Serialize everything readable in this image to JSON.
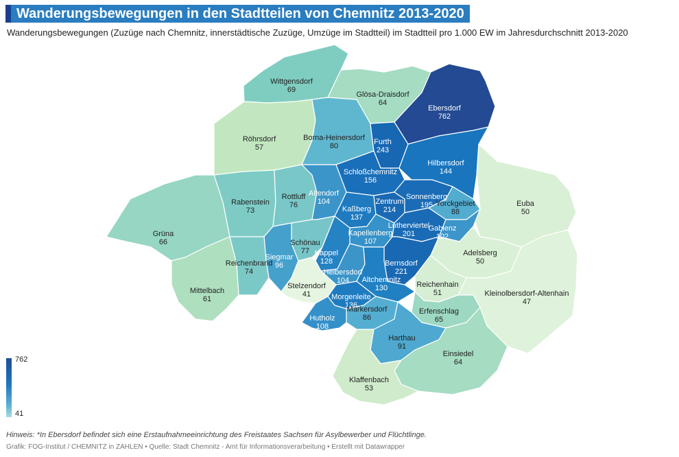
{
  "title": "Wanderungsbewegungen in den Stadtteilen von Chemnitz 2013-2020",
  "subtitle": "Wanderungsbewegungen (Zuzüge nach Chemnitz, innerstädtische Zuzüge, Umzüge im Stadtteil) im Stadtteil pro 1.000 EW im Jahresdurchschnitt 2013-2020",
  "legend": {
    "max": "762",
    "min": "41"
  },
  "note": "Hinweis: *In Ebersdorf befindet sich eine Erstaufnahmeeinrichtung des Freistaates Sachsen für Asylbewerber und Flüchtlinge.",
  "credit": "Grafik: FOG-Institut / CHEMNITZ in ZAHLEN • Quelle: Stadt Chemnitz - Amt für Informationsverarbeitung • Erstellt mit Datawrapper",
  "colors": {
    "title_bg": "#2a7dc0",
    "scale_high": "#1f4e97",
    "scale_mid": "#1f77c0",
    "scale_low": "#a8dde0"
  },
  "districts": [
    {
      "name": "Wittgensdorf",
      "value": "69",
      "color": "#7fcdc0"
    },
    {
      "name": "Glösa-Draisdorf",
      "value": "64",
      "color": "#a5dcc2"
    },
    {
      "name": "Ebersdorf",
      "value": "762",
      "color": "#234a92"
    },
    {
      "name": "Röhrsdorf",
      "value": "57",
      "color": "#c2e7c0"
    },
    {
      "name": "Borna-Heinersdorf",
      "value": "80",
      "color": "#5fb7cf"
    },
    {
      "name": "Furth",
      "value": "243",
      "color": "#1767b3"
    },
    {
      "name": "Hilbersdorf",
      "value": "144",
      "color": "#1875be"
    },
    {
      "name": "Schloßchemnitz",
      "value": "156",
      "color": "#1a6fba"
    },
    {
      "name": "Rabenstein",
      "value": "73",
      "color": "#7ecbc5"
    },
    {
      "name": "Rottluff",
      "value": "76",
      "color": "#7ac7c8"
    },
    {
      "name": "Altendorf",
      "value": "104",
      "color": "#3c95c9"
    },
    {
      "name": "Kaßberg",
      "value": "137",
      "color": "#1f7ac0"
    },
    {
      "name": "Zentrum",
      "value": "214",
      "color": "#1969b4"
    },
    {
      "name": "Sonnenberg",
      "value": "195",
      "color": "#1a6cb6"
    },
    {
      "name": "Yorckgebiet",
      "value": "88",
      "color": "#52acd0"
    },
    {
      "name": "Euba",
      "value": "50",
      "color": "#daf0d6"
    },
    {
      "name": "Grüna",
      "value": "66",
      "color": "#96d6c3"
    },
    {
      "name": "Schönau",
      "value": "77",
      "color": "#77c5c8"
    },
    {
      "name": "Kapellenberg",
      "value": "107",
      "color": "#3692c8"
    },
    {
      "name": "Lutherviertel",
      "value": "201",
      "color": "#1a6bb5"
    },
    {
      "name": "Gablenz",
      "value": "102",
      "color": "#3c96c9"
    },
    {
      "name": "Siegmar",
      "value": "96",
      "color": "#46a0cc"
    },
    {
      "name": "Kappel",
      "value": "128",
      "color": "#2582c3"
    },
    {
      "name": "Adelsberg",
      "value": "50",
      "color": "#daf0d6"
    },
    {
      "name": "Reichenbrand",
      "value": "74",
      "color": "#7bc9c6"
    },
    {
      "name": "Bernsdorf",
      "value": "221",
      "color": "#1968b3"
    },
    {
      "name": "Helbersdorf",
      "value": "104",
      "color": "#3c95c9"
    },
    {
      "name": "Mittelbach",
      "value": "61",
      "color": "#aedfbf"
    },
    {
      "name": "Stelzendorf",
      "value": "41",
      "color": "#e6f5e1"
    },
    {
      "name": "Altchemnitz",
      "value": "130",
      "color": "#2080c2"
    },
    {
      "name": "Reichenhain",
      "value": "51",
      "color": "#d6eed4"
    },
    {
      "name": "Kleinolbersdorf-Altenhain",
      "value": "47",
      "color": "#dff2db"
    },
    {
      "name": "Morgenleite",
      "value": "136",
      "color": "#1f7bc0"
    },
    {
      "name": "Markersdorf",
      "value": "86",
      "color": "#54aed1"
    },
    {
      "name": "Hutholz",
      "value": "108",
      "color": "#3490c8"
    },
    {
      "name": "Erfenschlag",
      "value": "65",
      "color": "#9dd8c3"
    },
    {
      "name": "Harthau",
      "value": "91",
      "color": "#4ea8cf"
    },
    {
      "name": "Einsiedel",
      "value": "64",
      "color": "#a5dcc2"
    },
    {
      "name": "Klaffenbach",
      "value": "53",
      "color": "#d0ebcc"
    }
  ]
}
